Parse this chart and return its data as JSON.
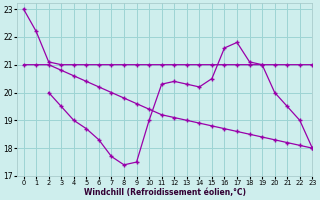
{
  "background_color": "#ceeeed",
  "grid_color": "#9dd4d4",
  "line_color": "#9900aa",
  "xlim": [
    -0.5,
    23
  ],
  "ylim": [
    17,
    23.2
  ],
  "yticks": [
    17,
    18,
    19,
    20,
    21,
    22,
    23
  ],
  "xticks": [
    0,
    1,
    2,
    3,
    4,
    5,
    6,
    7,
    8,
    9,
    10,
    11,
    12,
    13,
    14,
    15,
    16,
    17,
    18,
    19,
    20,
    21,
    22,
    23
  ],
  "xlabel": "Windchill (Refroidissement éolien,°C)",
  "line1_x": [
    0,
    1,
    2,
    3,
    4,
    5,
    6,
    7,
    8,
    9,
    10,
    11,
    12,
    13,
    14,
    15,
    16,
    17,
    18,
    19,
    20,
    21,
    22,
    23
  ],
  "line1_y": [
    23.0,
    22.2,
    21.1,
    21.0,
    21.0,
    21.0,
    21.0,
    21.0,
    21.0,
    21.0,
    21.0,
    21.0,
    21.0,
    21.0,
    21.0,
    21.0,
    21.0,
    21.0,
    21.0,
    21.0,
    21.0,
    21.0,
    21.0,
    21.0
  ],
  "line2_x": [
    2,
    3,
    4,
    5,
    6,
    7,
    8,
    9,
    10,
    11,
    12,
    13,
    14,
    15,
    16,
    17,
    18,
    19,
    20,
    21,
    22,
    23
  ],
  "line2_y": [
    20.0,
    19.5,
    19.0,
    18.7,
    18.3,
    17.7,
    17.4,
    17.5,
    19.0,
    20.3,
    20.4,
    20.3,
    20.2,
    20.5,
    21.6,
    21.8,
    21.1,
    21.0,
    20.0,
    19.5,
    19.0,
    18.0
  ],
  "line3_x": [
    0,
    1,
    2,
    3,
    4,
    5,
    6,
    7,
    8,
    9,
    10,
    11,
    12,
    13,
    14,
    15,
    16,
    17,
    18,
    19,
    20,
    21,
    22,
    23
  ],
  "line3_y": [
    21.0,
    21.0,
    21.0,
    20.8,
    20.6,
    20.4,
    20.2,
    20.0,
    19.8,
    19.6,
    19.4,
    19.2,
    19.1,
    19.0,
    18.9,
    18.8,
    18.7,
    18.6,
    18.5,
    18.4,
    18.3,
    18.2,
    18.1,
    18.0
  ],
  "marker": "+"
}
